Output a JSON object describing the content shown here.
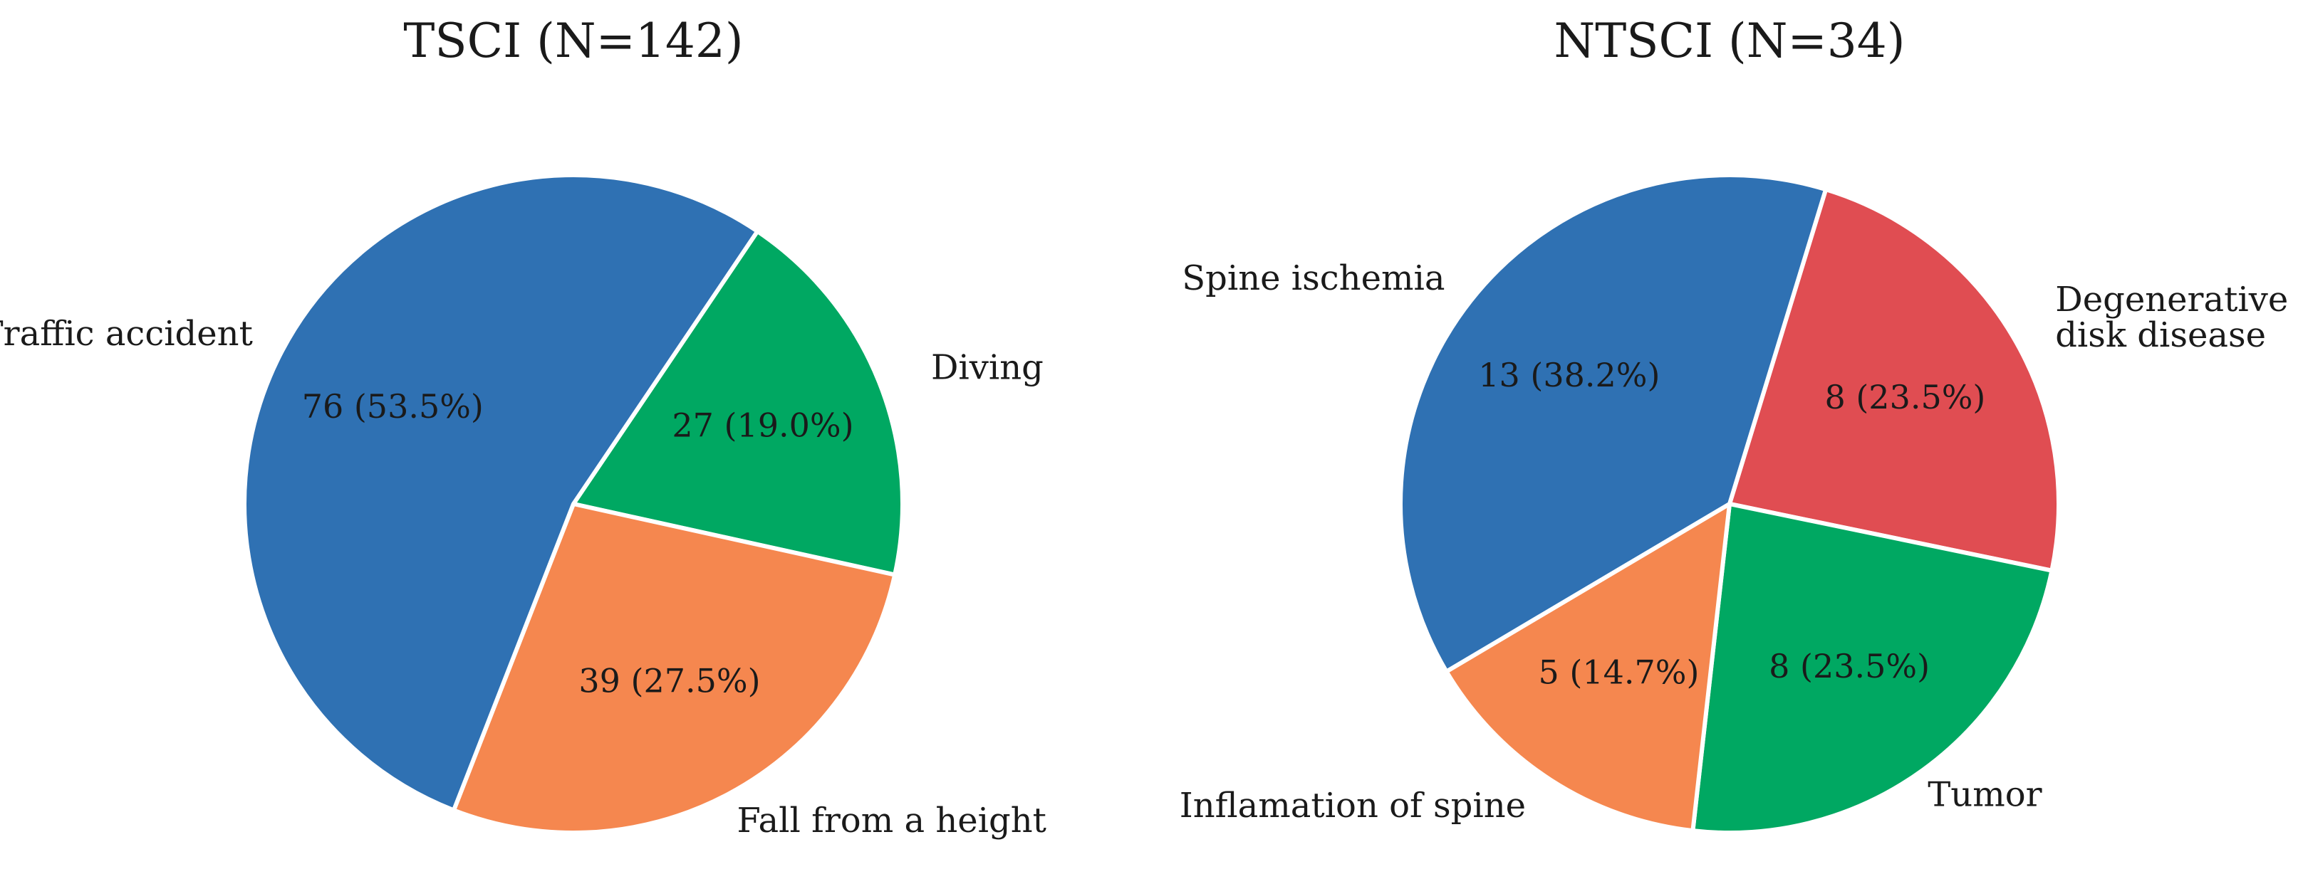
{
  "chart_data": [
    {
      "type": "pie",
      "title": "TSCI (N=142)",
      "start_angle_deg": 56,
      "direction": "clockwise",
      "slices": [
        {
          "label": "Diving",
          "value": 27,
          "display": "27 (19.0%)",
          "color": "#00a862"
        },
        {
          "label": "Fall from a height",
          "value": 39,
          "display": "39 (27.5%)",
          "color": "#f5874f"
        },
        {
          "label": "Traffic accident",
          "value": 76,
          "display": "76 (53.5%)",
          "color": "#2f71b3"
        }
      ]
    },
    {
      "type": "pie",
      "title": "NTSCI (N=34)",
      "start_angle_deg": 73,
      "direction": "clockwise",
      "slices": [
        {
          "label": "Degenerative\ndisk disease",
          "value": 8,
          "display": "8 (23.5%)",
          "color": "#e04d52"
        },
        {
          "label": "Tumor",
          "value": 8,
          "display": "8 (23.5%)",
          "color": "#00a862"
        },
        {
          "label": "Inflamation of spine",
          "value": 5,
          "display": "5 (14.7%)",
          "color": "#f5874f"
        },
        {
          "label": "Spine ischemia",
          "value": 13,
          "display": "13 (38.2%)",
          "color": "#2f71b3"
        }
      ]
    }
  ]
}
